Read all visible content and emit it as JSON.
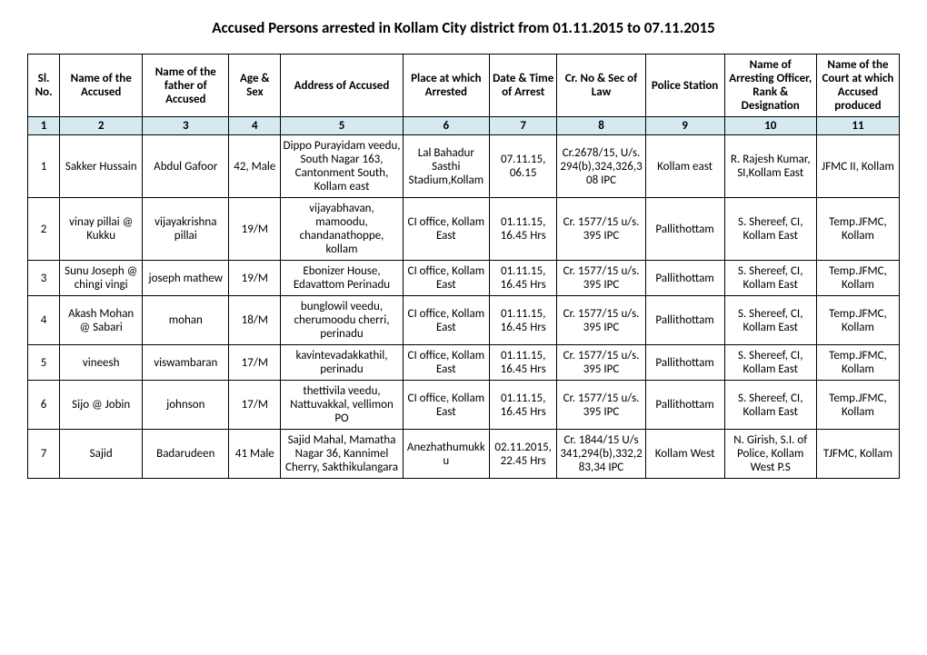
{
  "title": "Accused Persons arrested in  Kollam City   district from  01.11.2015 to 07.11.2015",
  "columns": [
    "Sl. No.",
    "Name of the Accused",
    "Name of the father of Accused",
    "Age & Sex",
    "Address of Accused",
    "Place at which Arrested",
    "Date & Time of Arrest",
    "Cr. No & Sec of Law",
    "Police Station",
    "Name of Arresting Officer, Rank & Designation",
    "Name of the Court at which Accused produced"
  ],
  "numrow": [
    "1",
    "2",
    "3",
    "4",
    "5",
    "6",
    "7",
    "8",
    "9",
    "10",
    "11"
  ],
  "rows": [
    {
      "sl": "1",
      "accused": "Sakker Hussain",
      "father": "Abdul Gafoor",
      "age": "42, Male",
      "address": "Dippo Purayidam veedu, South Nagar 163, Cantonment South, Kollam east",
      "place": "Lal Bahadur Sasthi Stadium,Kollam",
      "datetime": "07.11.15, 06.15",
      "crno": "Cr.2678/15, U/s. 294(b),324,326,308 IPC",
      "station": "Kollam east",
      "officer": "R. Rajesh Kumar, SI,Kollam East",
      "court": "JFMC II, Kollam"
    },
    {
      "sl": "2",
      "accused": "vinay pillai @ Kukku",
      "father": "vijayakrishna pillai",
      "age": "19/M",
      "address": "vijayabhavan, mamoodu, chandanathoppe, kollam",
      "place": "CI office, Kollam East",
      "datetime": "01.11.15, 16.45 Hrs",
      "crno": "Cr. 1577/15 u/s. 395 IPC",
      "station": "Pallithottam",
      "officer": "S. Shereef, CI, Kollam East",
      "court": "Temp.JFMC, Kollam"
    },
    {
      "sl": "3",
      "accused": "Sunu Joseph @ chingi vingi",
      "father": "joseph mathew",
      "age": "19/M",
      "address": "Ebonizer House, Edavattom Perinadu",
      "place": "CI office, Kollam East",
      "datetime": "01.11.15, 16.45 Hrs",
      "crno": "Cr. 1577/15 u/s. 395 IPC",
      "station": "Pallithottam",
      "officer": "S. Shereef, CI, Kollam East",
      "court": "Temp.JFMC, Kollam"
    },
    {
      "sl": "4",
      "accused": "Akash Mohan @ Sabari",
      "father": "mohan",
      "age": "18/M",
      "address": "bunglowil veedu, cherumoodu cherri, perinadu",
      "place": "CI office, Kollam East",
      "datetime": "01.11.15, 16.45 Hrs",
      "crno": "Cr. 1577/15 u/s. 395 IPC",
      "station": "Pallithottam",
      "officer": "S. Shereef, CI, Kollam East",
      "court": "Temp.JFMC, Kollam"
    },
    {
      "sl": "5",
      "accused": "vineesh",
      "father": "viswambaran",
      "age": "17/M",
      "address": "kavintevadakkathil, perinadu",
      "place": "CI office, Kollam East",
      "datetime": "01.11.15, 16.45 Hrs",
      "crno": "Cr. 1577/15 u/s. 395 IPC",
      "station": "Pallithottam",
      "officer": "S. Shereef, CI, Kollam East",
      "court": "Temp.JFMC, Kollam"
    },
    {
      "sl": "6",
      "accused": "Sijo @ Jobin",
      "father": "johnson",
      "age": "17/M",
      "address": "thettivila veedu, Nattuvakkal, vellimon PO",
      "place": "CI office, Kollam East",
      "datetime": "01.11.15, 16.45 Hrs",
      "crno": "Cr. 1577/15 u/s. 395 IPC",
      "station": "Pallithottam",
      "officer": "S. Shereef, CI, Kollam East",
      "court": "Temp.JFMC, Kollam"
    },
    {
      "sl": "7",
      "accused": "Sajid",
      "father": "Badarudeen",
      "age": "41 Male",
      "address": "Sajid Mahal, Mamatha Nagar 36, Kannimel Cherry, Sakthikulangara",
      "place": "Anezhathumukku",
      "datetime": "02.11.2015, 22.45 Hrs",
      "crno": "Cr. 1844/15 U/s 341,294(b),332,283,34 IPC",
      "station": "Kollam West",
      "officer": "N. Girish, S.I. of Police, Kollam West P.S",
      "court": "TJFMC, Kollam"
    }
  ]
}
